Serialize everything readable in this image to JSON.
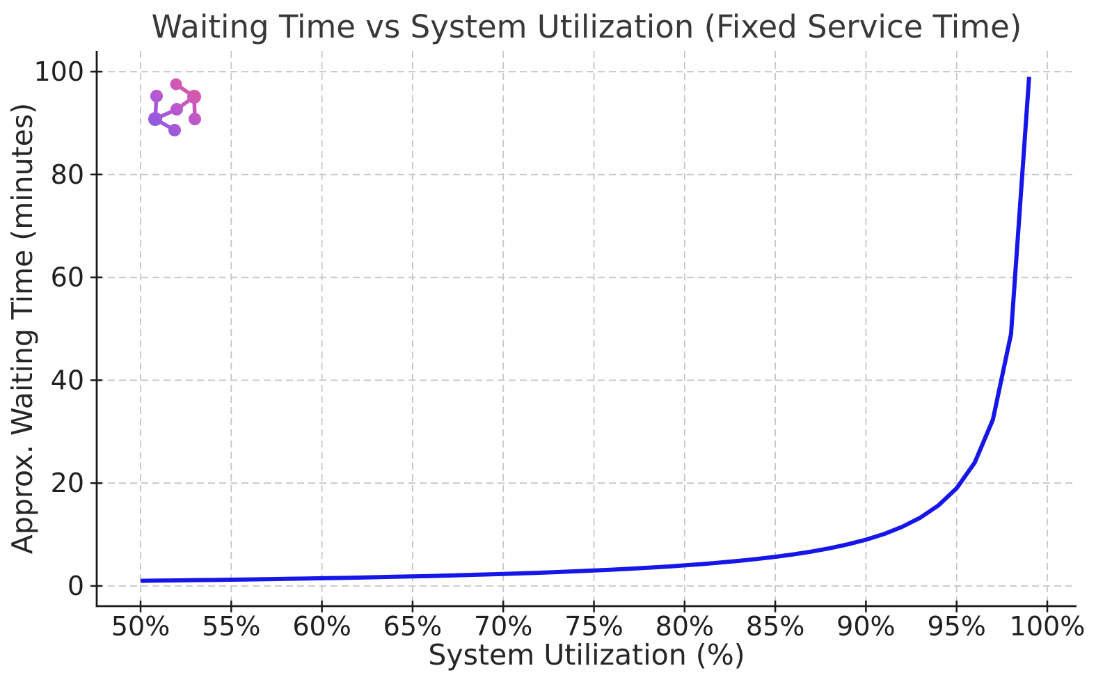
{
  "figure": {
    "background": "#ffffff",
    "logo_icon": "molecule-network-icon",
    "logo_gradient": [
      "#7b5ce8",
      "#ec5795"
    ]
  },
  "chart_data": {
    "type": "line",
    "title": "Waiting Time vs System Utilization (Fixed Service Time)",
    "xlabel": "System Utilization (%)",
    "ylabel": "Approx. Waiting Time (minutes)",
    "x_ticks": [
      50,
      55,
      60,
      65,
      70,
      75,
      80,
      85,
      90,
      95,
      100
    ],
    "x_tick_labels": [
      "50%",
      "55%",
      "60%",
      "65%",
      "70%",
      "75%",
      "80%",
      "85%",
      "90%",
      "95%",
      "100%"
    ],
    "y_ticks": [
      0,
      20,
      40,
      60,
      80,
      100
    ],
    "y_tick_labels": [
      "0",
      "20",
      "40",
      "60",
      "80",
      "100"
    ],
    "xlim": [
      47.6,
      100.6
    ],
    "ylim": [
      -4,
      104
    ],
    "grid": true,
    "grid_style": "dashed",
    "grid_color": "#c6c6c6",
    "spine_color": "#1a1a1a",
    "line_color": "#1616e8",
    "legend": "none",
    "series": [
      {
        "name": "waiting-time",
        "x": [
          50,
          51,
          52,
          53,
          54,
          55,
          56,
          57,
          58,
          59,
          60,
          61,
          62,
          63,
          64,
          65,
          66,
          67,
          68,
          69,
          70,
          71,
          72,
          73,
          74,
          75,
          76,
          77,
          78,
          79,
          80,
          81,
          82,
          83,
          84,
          85,
          86,
          87,
          88,
          89,
          90,
          91,
          92,
          93,
          94,
          95,
          96,
          97,
          98,
          99
        ],
        "y": [
          1.0,
          1.04,
          1.08,
          1.13,
          1.17,
          1.22,
          1.27,
          1.33,
          1.38,
          1.44,
          1.5,
          1.56,
          1.63,
          1.7,
          1.78,
          1.86,
          1.94,
          2.03,
          2.13,
          2.23,
          2.33,
          2.45,
          2.57,
          2.7,
          2.85,
          3.0,
          3.17,
          3.35,
          3.55,
          3.76,
          4.0,
          4.26,
          4.56,
          4.88,
          5.25,
          5.67,
          6.14,
          6.69,
          7.33,
          8.09,
          9.0,
          10.11,
          11.5,
          13.29,
          15.67,
          19.0,
          24.0,
          32.33,
          49.0,
          99.0
        ]
      }
    ]
  }
}
